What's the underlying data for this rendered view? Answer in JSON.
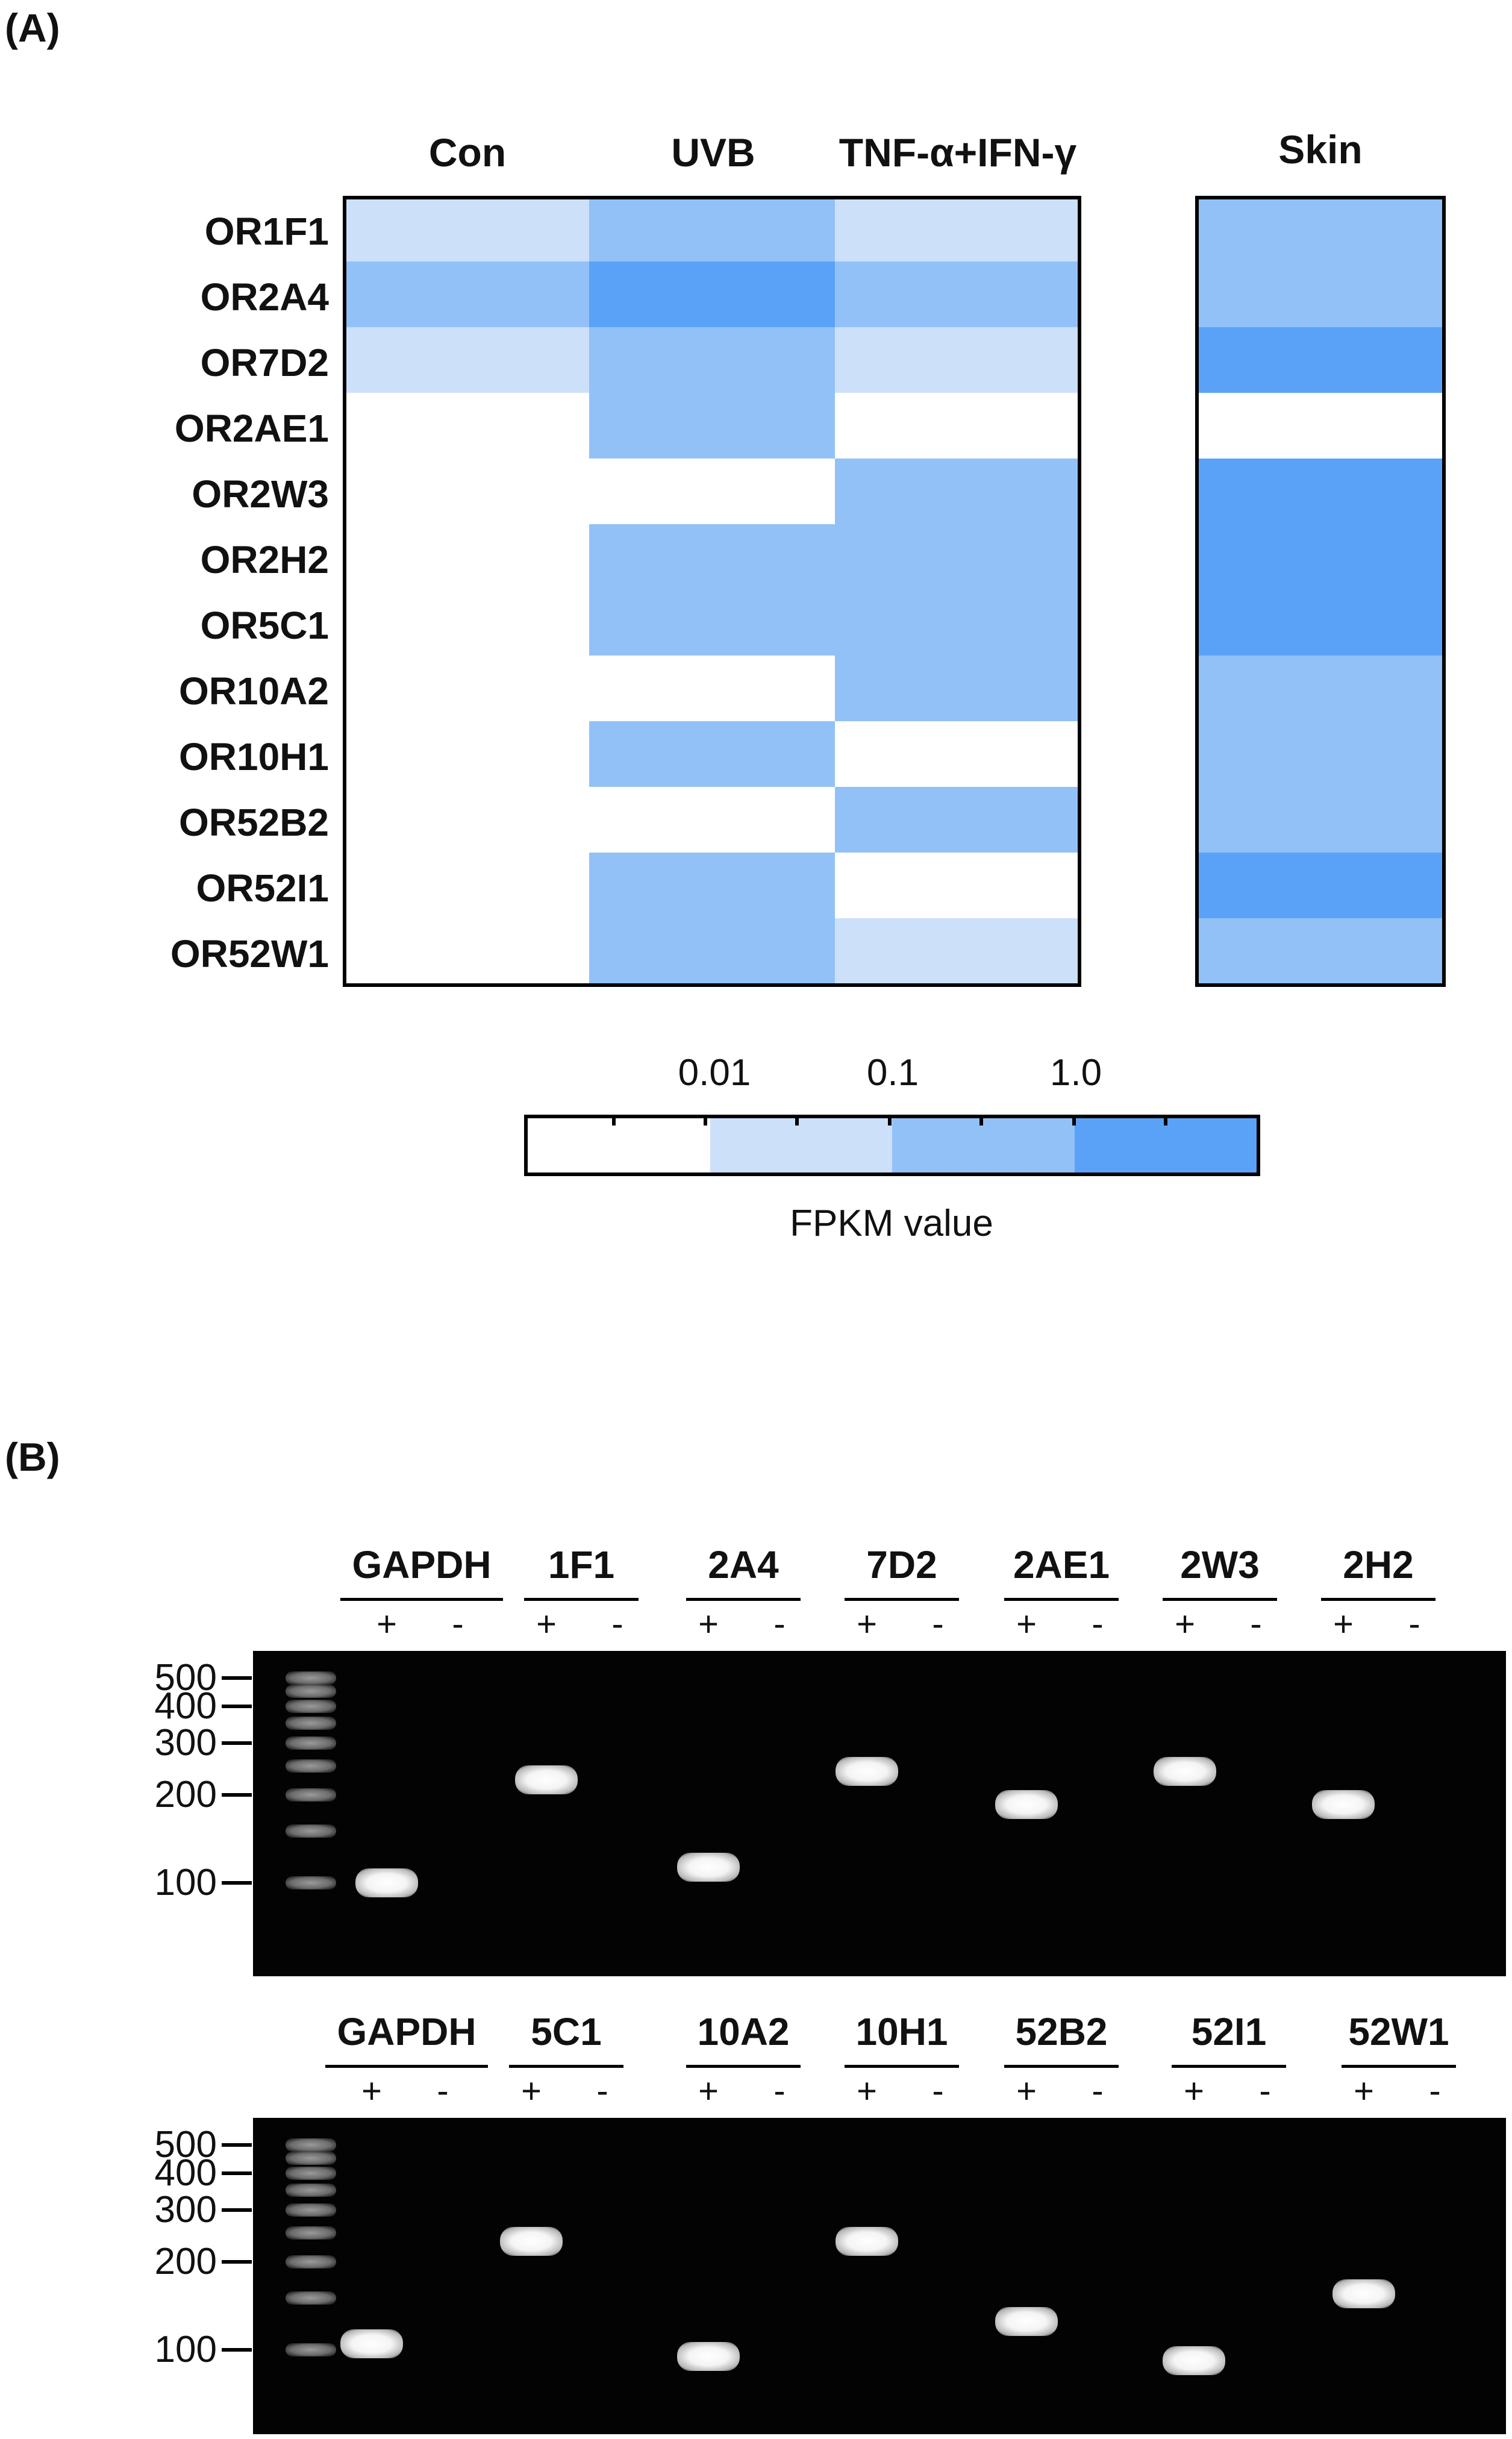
{
  "panel_labels": {
    "a": "(A)",
    "b": "(B)"
  },
  "heatmap": {
    "columns": [
      "Con",
      "UVB",
      "TNF-α+IFN-γ"
    ],
    "skin_column": "Skin",
    "rows": [
      "OR1F1",
      "OR2A4",
      "OR7D2",
      "OR2AE1",
      "OR2W3",
      "OR2H2",
      "OR5C1",
      "OR10A2",
      "OR10H1",
      "OR52B2",
      "OR52I1",
      "OR52W1"
    ],
    "level_colors": [
      "#ffffff",
      "#cce0fa",
      "#92c1f7",
      "#5aa2f7"
    ],
    "cell_levels": [
      [
        1,
        2,
        1
      ],
      [
        2,
        3,
        2
      ],
      [
        1,
        2,
        1
      ],
      [
        0,
        2,
        0
      ],
      [
        0,
        0,
        2
      ],
      [
        0,
        2,
        2
      ],
      [
        0,
        2,
        2
      ],
      [
        0,
        0,
        2
      ],
      [
        0,
        2,
        0
      ],
      [
        0,
        0,
        2
      ],
      [
        0,
        2,
        0
      ],
      [
        0,
        2,
        1
      ]
    ],
    "skin_levels": [
      2,
      2,
      3,
      0,
      3,
      3,
      3,
      2,
      2,
      2,
      3,
      2
    ]
  },
  "colorbar": {
    "tick_labels": [
      "0.01",
      "0.1",
      "1.0"
    ],
    "title": "FPKM value"
  },
  "gels": [
    {
      "lanes": [
        {
          "name": "GAPDH",
          "plus": "+",
          "minus": "-",
          "band_bp": 100
        },
        {
          "name": "1F1",
          "plus": "+",
          "minus": "-",
          "band_bp": 225
        },
        {
          "name": "2A4",
          "plus": "+",
          "minus": "-",
          "band_bp": 113
        },
        {
          "name": "7D2",
          "plus": "+",
          "minus": "-",
          "band_bp": 240
        },
        {
          "name": "2AE1",
          "plus": "+",
          "minus": "-",
          "band_bp": 185
        },
        {
          "name": "2W3",
          "plus": "+",
          "minus": "-",
          "band_bp": 240
        },
        {
          "name": "2H2",
          "plus": "+",
          "minus": "-",
          "band_bp": 185
        }
      ],
      "markers": [
        "500",
        "400",
        "300",
        "200",
        "100"
      ]
    },
    {
      "lanes": [
        {
          "name": "GAPDH",
          "plus": "+",
          "minus": "-",
          "band_bp": 105
        },
        {
          "name": "5C1",
          "plus": "+",
          "minus": "-",
          "band_bp": 235
        },
        {
          "name": "10A2",
          "plus": "+",
          "minus": "-",
          "band_bp": 95
        },
        {
          "name": "10H1",
          "plus": "+",
          "minus": "-",
          "band_bp": 235
        },
        {
          "name": "52B2",
          "plus": "+",
          "minus": "-",
          "band_bp": 125
        },
        {
          "name": "52I1",
          "plus": "+",
          "minus": "-",
          "band_bp": 92
        },
        {
          "name": "52W1",
          "plus": "+",
          "minus": "-",
          "band_bp": 155
        }
      ],
      "markers": [
        "500",
        "400",
        "300",
        "200",
        "100"
      ]
    }
  ]
}
